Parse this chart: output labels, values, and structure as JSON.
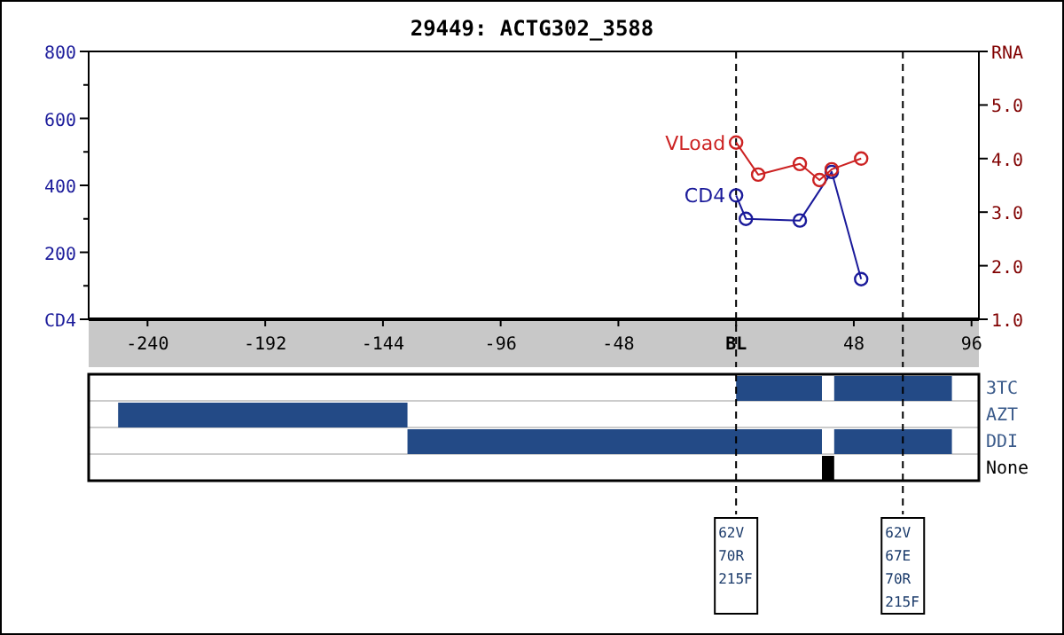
{
  "chart_data": [
    {
      "type": "line",
      "title": "29449: ACTG302_3588",
      "xlim": [
        -264,
        99
      ],
      "xticks": [
        -240,
        -192,
        -144,
        -96,
        -48,
        {
          "value": 0,
          "label": "BL"
        },
        48,
        96
      ],
      "ylim": [
        0,
        800
      ],
      "yticks": [
        {
          "value": 0,
          "label": "CD4"
        },
        {
          "value": 100,
          "label": null
        },
        200,
        {
          "value": 300,
          "label": null
        },
        400,
        {
          "value": 500,
          "label": null
        },
        600,
        {
          "value": 700,
          "label": null
        },
        800
      ],
      "y2lim": [
        1,
        6
      ],
      "y2ticks": [
        {
          "value": 1,
          "label": "1.0"
        },
        {
          "value": 2,
          "label": "2.0"
        },
        {
          "value": 3,
          "label": "3.0"
        },
        {
          "value": 4,
          "label": "4.0"
        },
        {
          "value": 5,
          "label": "5.0"
        },
        {
          "value": 6,
          "label": "RNA"
        }
      ],
      "marker": "circle",
      "grid": false,
      "ref_lines": [
        {
          "axis": "x",
          "value": 0,
          "line_style": "dashed",
          "color": "#000000"
        },
        {
          "axis": "x",
          "value": 68,
          "line_style": "dashed",
          "color": "#000000"
        }
      ],
      "series": [
        {
          "name": "CD4",
          "color": "#1a1a9a",
          "x": [
            0,
            4,
            26,
            39,
            51
          ],
          "values": [
            370,
            300,
            295,
            440,
            120
          ]
        },
        {
          "name": "VLoad",
          "color": "#cc2222",
          "axis": "y2",
          "x": [
            0,
            9,
            26,
            34,
            39,
            51
          ],
          "values": [
            4.3,
            3.7,
            3.9,
            3.6,
            3.8,
            4.0
          ]
        }
      ]
    },
    {
      "type": "bar",
      "orientation": "horizontal",
      "categories": [
        "3TC",
        "AZT",
        "DDI",
        "None"
      ],
      "xlim": [
        -264,
        99
      ],
      "tick_labels": "y",
      "ref_lines": [
        {
          "axis": "x",
          "value": 0,
          "line_style": "dashed",
          "color": "#000000"
        },
        {
          "axis": "x",
          "value": 68,
          "line_style": "dashed",
          "color": "#000000"
        }
      ],
      "annotations": [
        "62V 70R 215F",
        "62V 67E 70R 215F"
      ],
      "series": [
        {
          "color": "#234a86",
          "values": [
            35,
            118,
            169,
            null
          ],
          "base": [
            0,
            -252,
            -134,
            null
          ]
        },
        {
          "color": "#234a86",
          "values": [
            48,
            null,
            48,
            null
          ],
          "base": [
            40,
            null,
            40,
            null
          ]
        },
        {
          "color": "#000000",
          "values": [
            null,
            null,
            null,
            5
          ],
          "base": [
            null,
            null,
            null,
            35
          ]
        }
      ]
    }
  ]
}
